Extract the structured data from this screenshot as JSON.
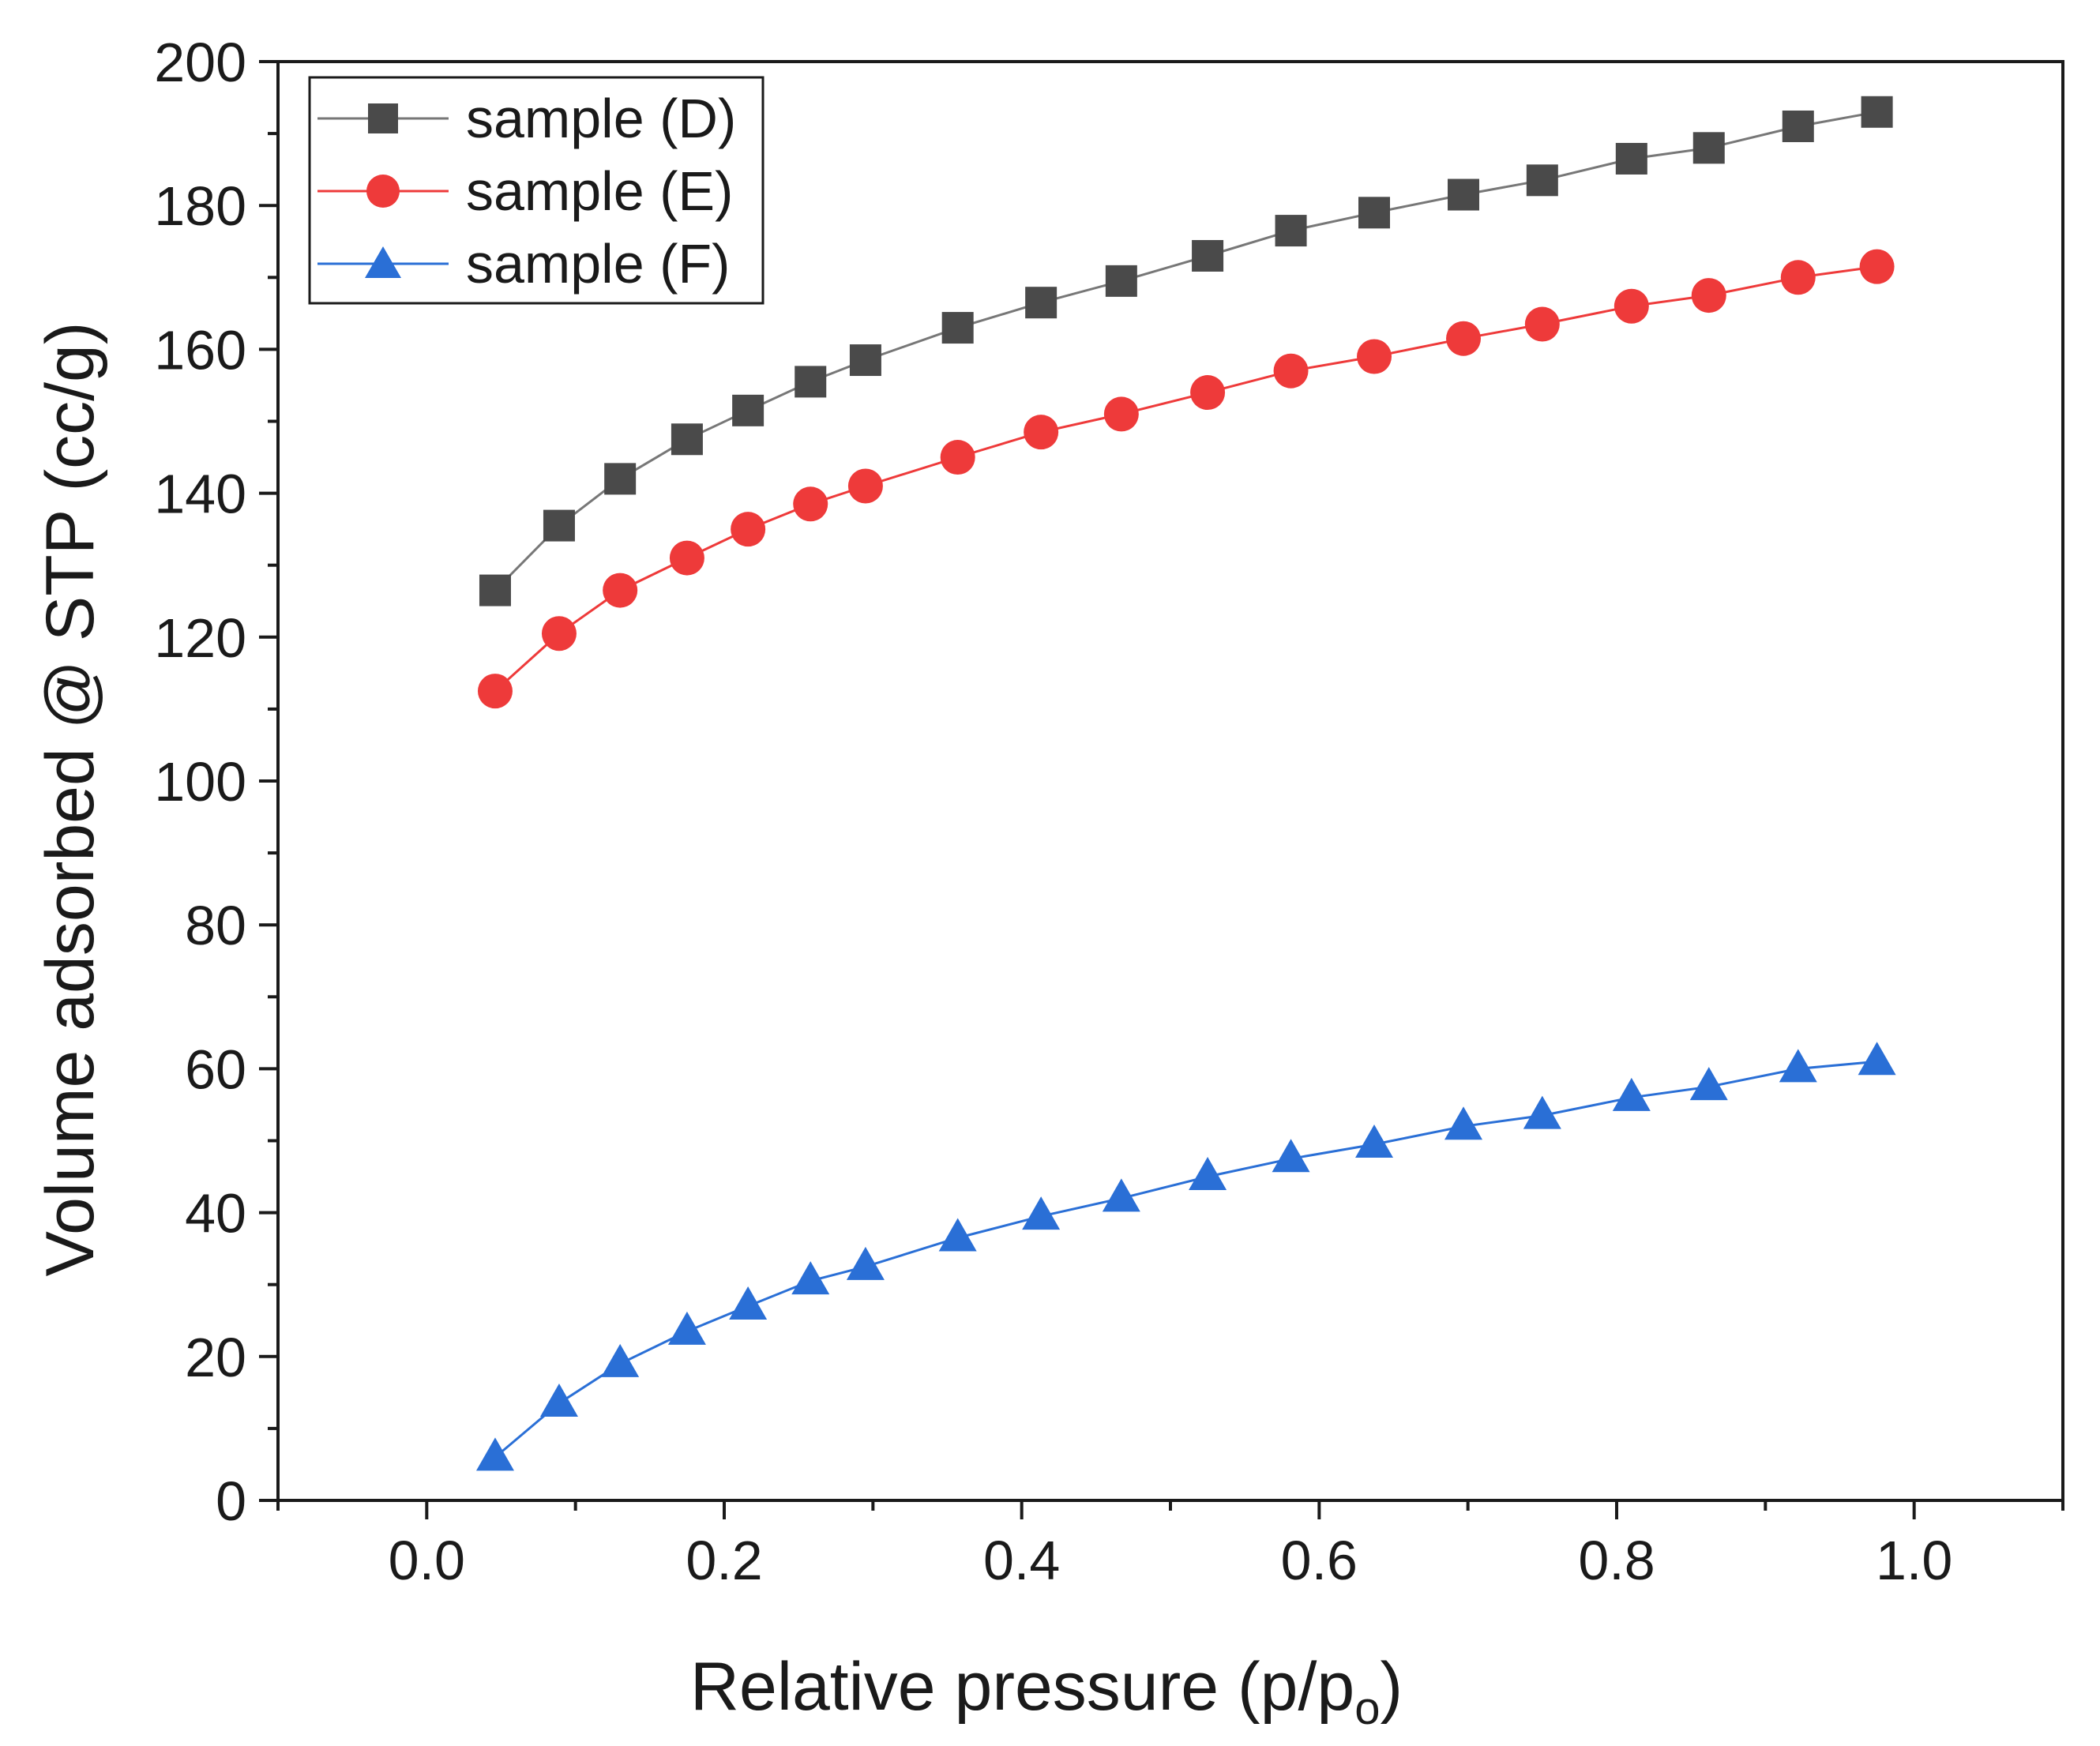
{
  "chart_data": {
    "type": "line",
    "title": "",
    "xlabel": "Relative pressure (p/p",
    "xlabel_sub": "o",
    "xlabel_close": ")",
    "ylabel": "Volume adsorbed @ STP (cc/g)",
    "xlim": [
      -0.1,
      1.1
    ],
    "ylim": [
      0,
      200
    ],
    "x_ticks": [
      0.0,
      0.2,
      0.4,
      0.6,
      0.8,
      1.0
    ],
    "x_tick_labels": [
      "0.0",
      "0.2",
      "0.4",
      "0.6",
      "0.8",
      "1.0"
    ],
    "y_ticks": [
      0,
      20,
      40,
      60,
      80,
      100,
      120,
      140,
      160,
      180,
      200
    ],
    "y_tick_labels": [
      "0",
      "20",
      "40",
      "60",
      "80",
      "100",
      "120",
      "140",
      "160",
      "180",
      "200"
    ],
    "grid": false,
    "legend_position": "top-left",
    "x": [
      0.046,
      0.089,
      0.13,
      0.175,
      0.216,
      0.258,
      0.295,
      0.357,
      0.413,
      0.467,
      0.525,
      0.581,
      0.637,
      0.697,
      0.75,
      0.81,
      0.862,
      0.922,
      0.975
    ],
    "series": [
      {
        "name": "sample (D)",
        "marker": "square",
        "color": "#4a4a4a",
        "line_color": "#777777",
        "values": [
          126.5,
          135.5,
          142,
          147.5,
          151.5,
          155.5,
          158.5,
          163,
          166.5,
          169.5,
          173,
          176.5,
          179,
          181.5,
          183.5,
          186.5,
          188,
          191,
          193
        ]
      },
      {
        "name": "sample (E)",
        "marker": "circle",
        "color": "#ee3a3a",
        "line_color": "#ee3a3a",
        "values": [
          112.5,
          120.5,
          126.5,
          131,
          135,
          138.5,
          141,
          145,
          148.5,
          151,
          154,
          157,
          159,
          161.5,
          163.5,
          166,
          167.5,
          170,
          171.5
        ]
      },
      {
        "name": "sample (F)",
        "marker": "triangle",
        "color": "#2a6fd6",
        "line_color": "#2a6fd6",
        "values": [
          6,
          13.5,
          19,
          23.5,
          27,
          30.5,
          32.5,
          36.5,
          39.5,
          42,
          45,
          47.5,
          49.5,
          52,
          53.5,
          56,
          57.5,
          60,
          61
        ]
      }
    ]
  }
}
